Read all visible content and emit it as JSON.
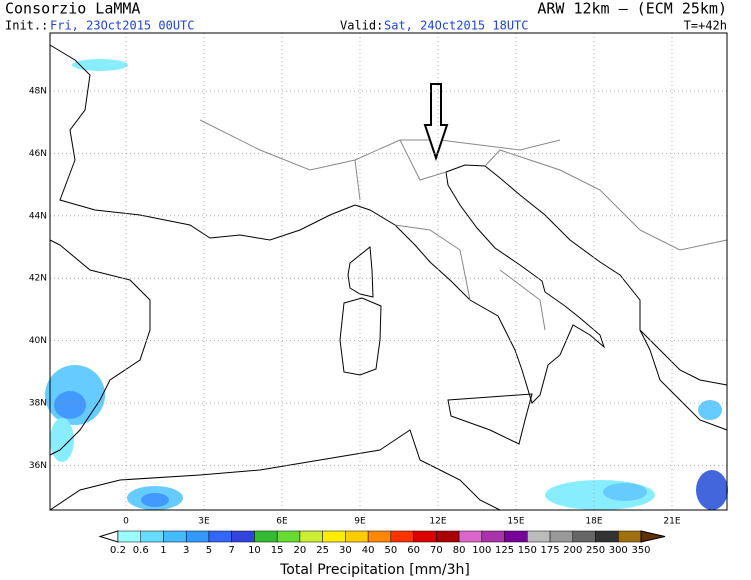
{
  "header": {
    "title": "Consorzio LaMMA",
    "model": "ARW 12km – (ECM 25km)",
    "init_label": "Init.:",
    "init_time": "Fri, 23Oct2015 00UTC",
    "valid_label": "Valid:",
    "valid_time": "Sat, 24Oct2015 18UTC",
    "lead": "T=+42h"
  },
  "map": {
    "lat_labels": [
      "48N",
      "46N",
      "44N",
      "42N",
      "40N",
      "38N",
      "36N"
    ],
    "lon_labels": [
      "0",
      "3E",
      "6E",
      "9E",
      "12E",
      "15E",
      "18E",
      "21E"
    ]
  },
  "colorbar": {
    "title": "Total Precipitation [mm/3h]",
    "labels": [
      "0.2",
      "0.6",
      "1",
      "3",
      "5",
      "7",
      "10",
      "15",
      "20",
      "25",
      "30",
      "40",
      "50",
      "60",
      "70",
      "80",
      "100",
      "125",
      "150",
      "175",
      "200",
      "250",
      "300",
      "350"
    ],
    "colors": [
      "#99ffff",
      "#66ddff",
      "#44bbff",
      "#3399ff",
      "#3366ff",
      "#3344dd",
      "#33bb33",
      "#66dd33",
      "#ccee33",
      "#ffee00",
      "#ffcc00",
      "#ff8800",
      "#ff3300",
      "#dd0000",
      "#aa0000",
      "#dd66cc",
      "#aa33aa",
      "#770099",
      "#bbbbbb",
      "#999999",
      "#666666",
      "#333333",
      "#a07010",
      "#805010",
      "#603008"
    ]
  }
}
